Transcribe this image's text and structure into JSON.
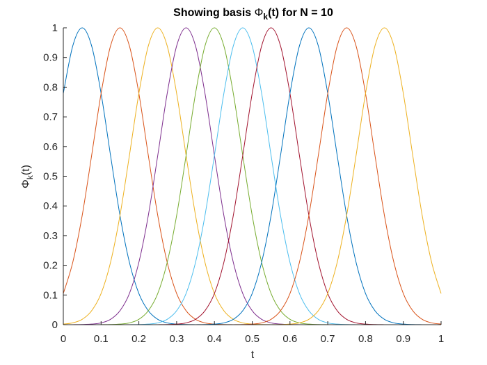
{
  "chart_data": {
    "type": "line",
    "title_parts": {
      "prefix": "Showing basis ",
      "symbol": "Φ",
      "subscript": "k",
      "suffix": "(t) for N = 10"
    },
    "xlabel": "t",
    "ylabel_parts": {
      "symbol": "Φ",
      "subscript": "k",
      "suffix": "(t)"
    },
    "xlim": [
      0,
      1
    ],
    "ylim": [
      0,
      1
    ],
    "xticks": [
      0,
      0.1,
      0.2,
      0.3,
      0.4,
      0.5,
      0.6,
      0.7,
      0.8,
      0.9,
      1
    ],
    "xtick_labels": [
      "0",
      "0.1",
      "0.2",
      "0.3",
      "0.4",
      "0.5",
      "0.6",
      "0.7",
      "0.8",
      "0.9",
      "1"
    ],
    "yticks": [
      0,
      0.1,
      0.2,
      0.3,
      0.4,
      0.5,
      0.6,
      0.7,
      0.8,
      0.9,
      1
    ],
    "ytick_labels": [
      "0",
      "0.1",
      "0.2",
      "0.3",
      "0.4",
      "0.5",
      "0.6",
      "0.7",
      "0.8",
      "0.9",
      "1"
    ],
    "grid": false,
    "legend": "none",
    "x": [
      0,
      0.025,
      0.05,
      0.075,
      0.1,
      0.125,
      0.15,
      0.175,
      0.2,
      0.225,
      0.25,
      0.275,
      0.3,
      0.325,
      0.35,
      0.375,
      0.4,
      0.425,
      0.45,
      0.475,
      0.5,
      0.525,
      0.55,
      0.575,
      0.6,
      0.625,
      0.65,
      0.675,
      0.7,
      0.725,
      0.75,
      0.775,
      0.8,
      0.825,
      0.85,
      0.875,
      0.9,
      0.925,
      0.95,
      0.975,
      1
    ],
    "series": [
      {
        "color": "#0072BD",
        "values": [
          0.779,
          0.939,
          1.0,
          0.939,
          0.779,
          0.57,
          0.368,
          0.21,
          0.105,
          0.047,
          0.018,
          0.006,
          0.002,
          0.0005,
          0.0001,
          0,
          0,
          0,
          0,
          0,
          0,
          0,
          0,
          0,
          0,
          0,
          0,
          0,
          0,
          0,
          0,
          0,
          0,
          0,
          0,
          0,
          0,
          0,
          0,
          0,
          0
        ]
      },
      {
        "color": "#D95319",
        "values": [
          0.105,
          0.21,
          0.368,
          0.57,
          0.779,
          0.939,
          1.0,
          0.939,
          0.779,
          0.57,
          0.368,
          0.21,
          0.105,
          0.047,
          0.018,
          0.006,
          0.002,
          0.0005,
          0.0001,
          0,
          0,
          0,
          0,
          0,
          0,
          0,
          0,
          0,
          0,
          0,
          0,
          0,
          0,
          0,
          0,
          0,
          0,
          0,
          0,
          0,
          0
        ]
      },
      {
        "color": "#EDB120",
        "values": [
          0.0019,
          0.0062,
          0.018,
          0.047,
          0.105,
          0.21,
          0.368,
          0.57,
          0.779,
          0.939,
          1.0,
          0.939,
          0.779,
          0.57,
          0.368,
          0.21,
          0.105,
          0.047,
          0.018,
          0.006,
          0.002,
          0.0005,
          0.0001,
          0,
          0,
          0,
          0,
          0,
          0,
          0,
          0,
          0,
          0,
          0,
          0,
          0,
          0,
          0,
          0,
          0,
          0
        ]
      },
      {
        "color": "#7E2F8E",
        "values": [
          0,
          0.0001,
          0.0005,
          0.002,
          0.006,
          0.018,
          0.047,
          0.105,
          0.21,
          0.368,
          0.57,
          0.779,
          0.939,
          1.0,
          0.939,
          0.779,
          0.57,
          0.368,
          0.21,
          0.105,
          0.047,
          0.018,
          0.006,
          0.002,
          0.0005,
          0.0001,
          0,
          0,
          0,
          0,
          0,
          0,
          0,
          0,
          0,
          0,
          0,
          0,
          0,
          0,
          0
        ]
      },
      {
        "color": "#77AC30",
        "values": [
          0,
          0,
          0,
          0,
          0.0001,
          0.0005,
          0.002,
          0.006,
          0.018,
          0.047,
          0.105,
          0.21,
          0.368,
          0.57,
          0.779,
          0.939,
          1.0,
          0.939,
          0.779,
          0.57,
          0.368,
          0.21,
          0.105,
          0.047,
          0.018,
          0.006,
          0.002,
          0.0005,
          0.0001,
          0,
          0,
          0,
          0,
          0,
          0,
          0,
          0,
          0,
          0,
          0,
          0
        ]
      },
      {
        "color": "#4DBEEE",
        "values": [
          0,
          0,
          0,
          0,
          0,
          0,
          0,
          0.0001,
          0.0005,
          0.002,
          0.006,
          0.018,
          0.047,
          0.105,
          0.21,
          0.368,
          0.57,
          0.779,
          0.939,
          1.0,
          0.939,
          0.779,
          0.57,
          0.368,
          0.21,
          0.105,
          0.047,
          0.018,
          0.006,
          0.002,
          0.0005,
          0.0001,
          0,
          0,
          0,
          0,
          0,
          0,
          0,
          0,
          0
        ]
      },
      {
        "color": "#A2142F",
        "values": [
          0,
          0,
          0,
          0,
          0,
          0,
          0,
          0,
          0,
          0,
          0.0001,
          0.0005,
          0.002,
          0.006,
          0.018,
          0.047,
          0.105,
          0.21,
          0.368,
          0.57,
          0.779,
          0.939,
          1.0,
          0.939,
          0.779,
          0.57,
          0.368,
          0.21,
          0.105,
          0.047,
          0.018,
          0.006,
          0.002,
          0.0005,
          0.0001,
          0,
          0,
          0,
          0,
          0,
          0
        ]
      },
      {
        "color": "#0072BD",
        "values": [
          0,
          0,
          0,
          0,
          0,
          0,
          0,
          0,
          0,
          0,
          0,
          0,
          0,
          0,
          0.0001,
          0.0005,
          0.002,
          0.006,
          0.018,
          0.047,
          0.105,
          0.21,
          0.368,
          0.57,
          0.779,
          0.939,
          1.0,
          0.939,
          0.779,
          0.57,
          0.368,
          0.21,
          0.105,
          0.047,
          0.018,
          0.006,
          0.002,
          0.0005,
          0.0001,
          0,
          0
        ]
      },
      {
        "color": "#D95319",
        "values": [
          0,
          0,
          0,
          0,
          0,
          0,
          0,
          0,
          0,
          0,
          0,
          0,
          0,
          0,
          0,
          0,
          0,
          0,
          0.0001,
          0.0005,
          0.002,
          0.006,
          0.018,
          0.047,
          0.105,
          0.21,
          0.368,
          0.57,
          0.779,
          0.939,
          1.0,
          0.939,
          0.779,
          0.57,
          0.368,
          0.21,
          0.105,
          0.047,
          0.018,
          0.006,
          0.002
        ]
      },
      {
        "color": "#EDB120",
        "values": [
          0,
          0,
          0,
          0,
          0,
          0,
          0,
          0,
          0,
          0,
          0,
          0,
          0,
          0,
          0,
          0,
          0,
          0,
          0,
          0,
          0,
          0,
          0.0001,
          0.0005,
          0.002,
          0.006,
          0.018,
          0.047,
          0.105,
          0.21,
          0.368,
          0.57,
          0.779,
          0.939,
          1.0,
          0.939,
          0.779,
          0.57,
          0.368,
          0.21,
          0.105
        ]
      }
    ]
  }
}
